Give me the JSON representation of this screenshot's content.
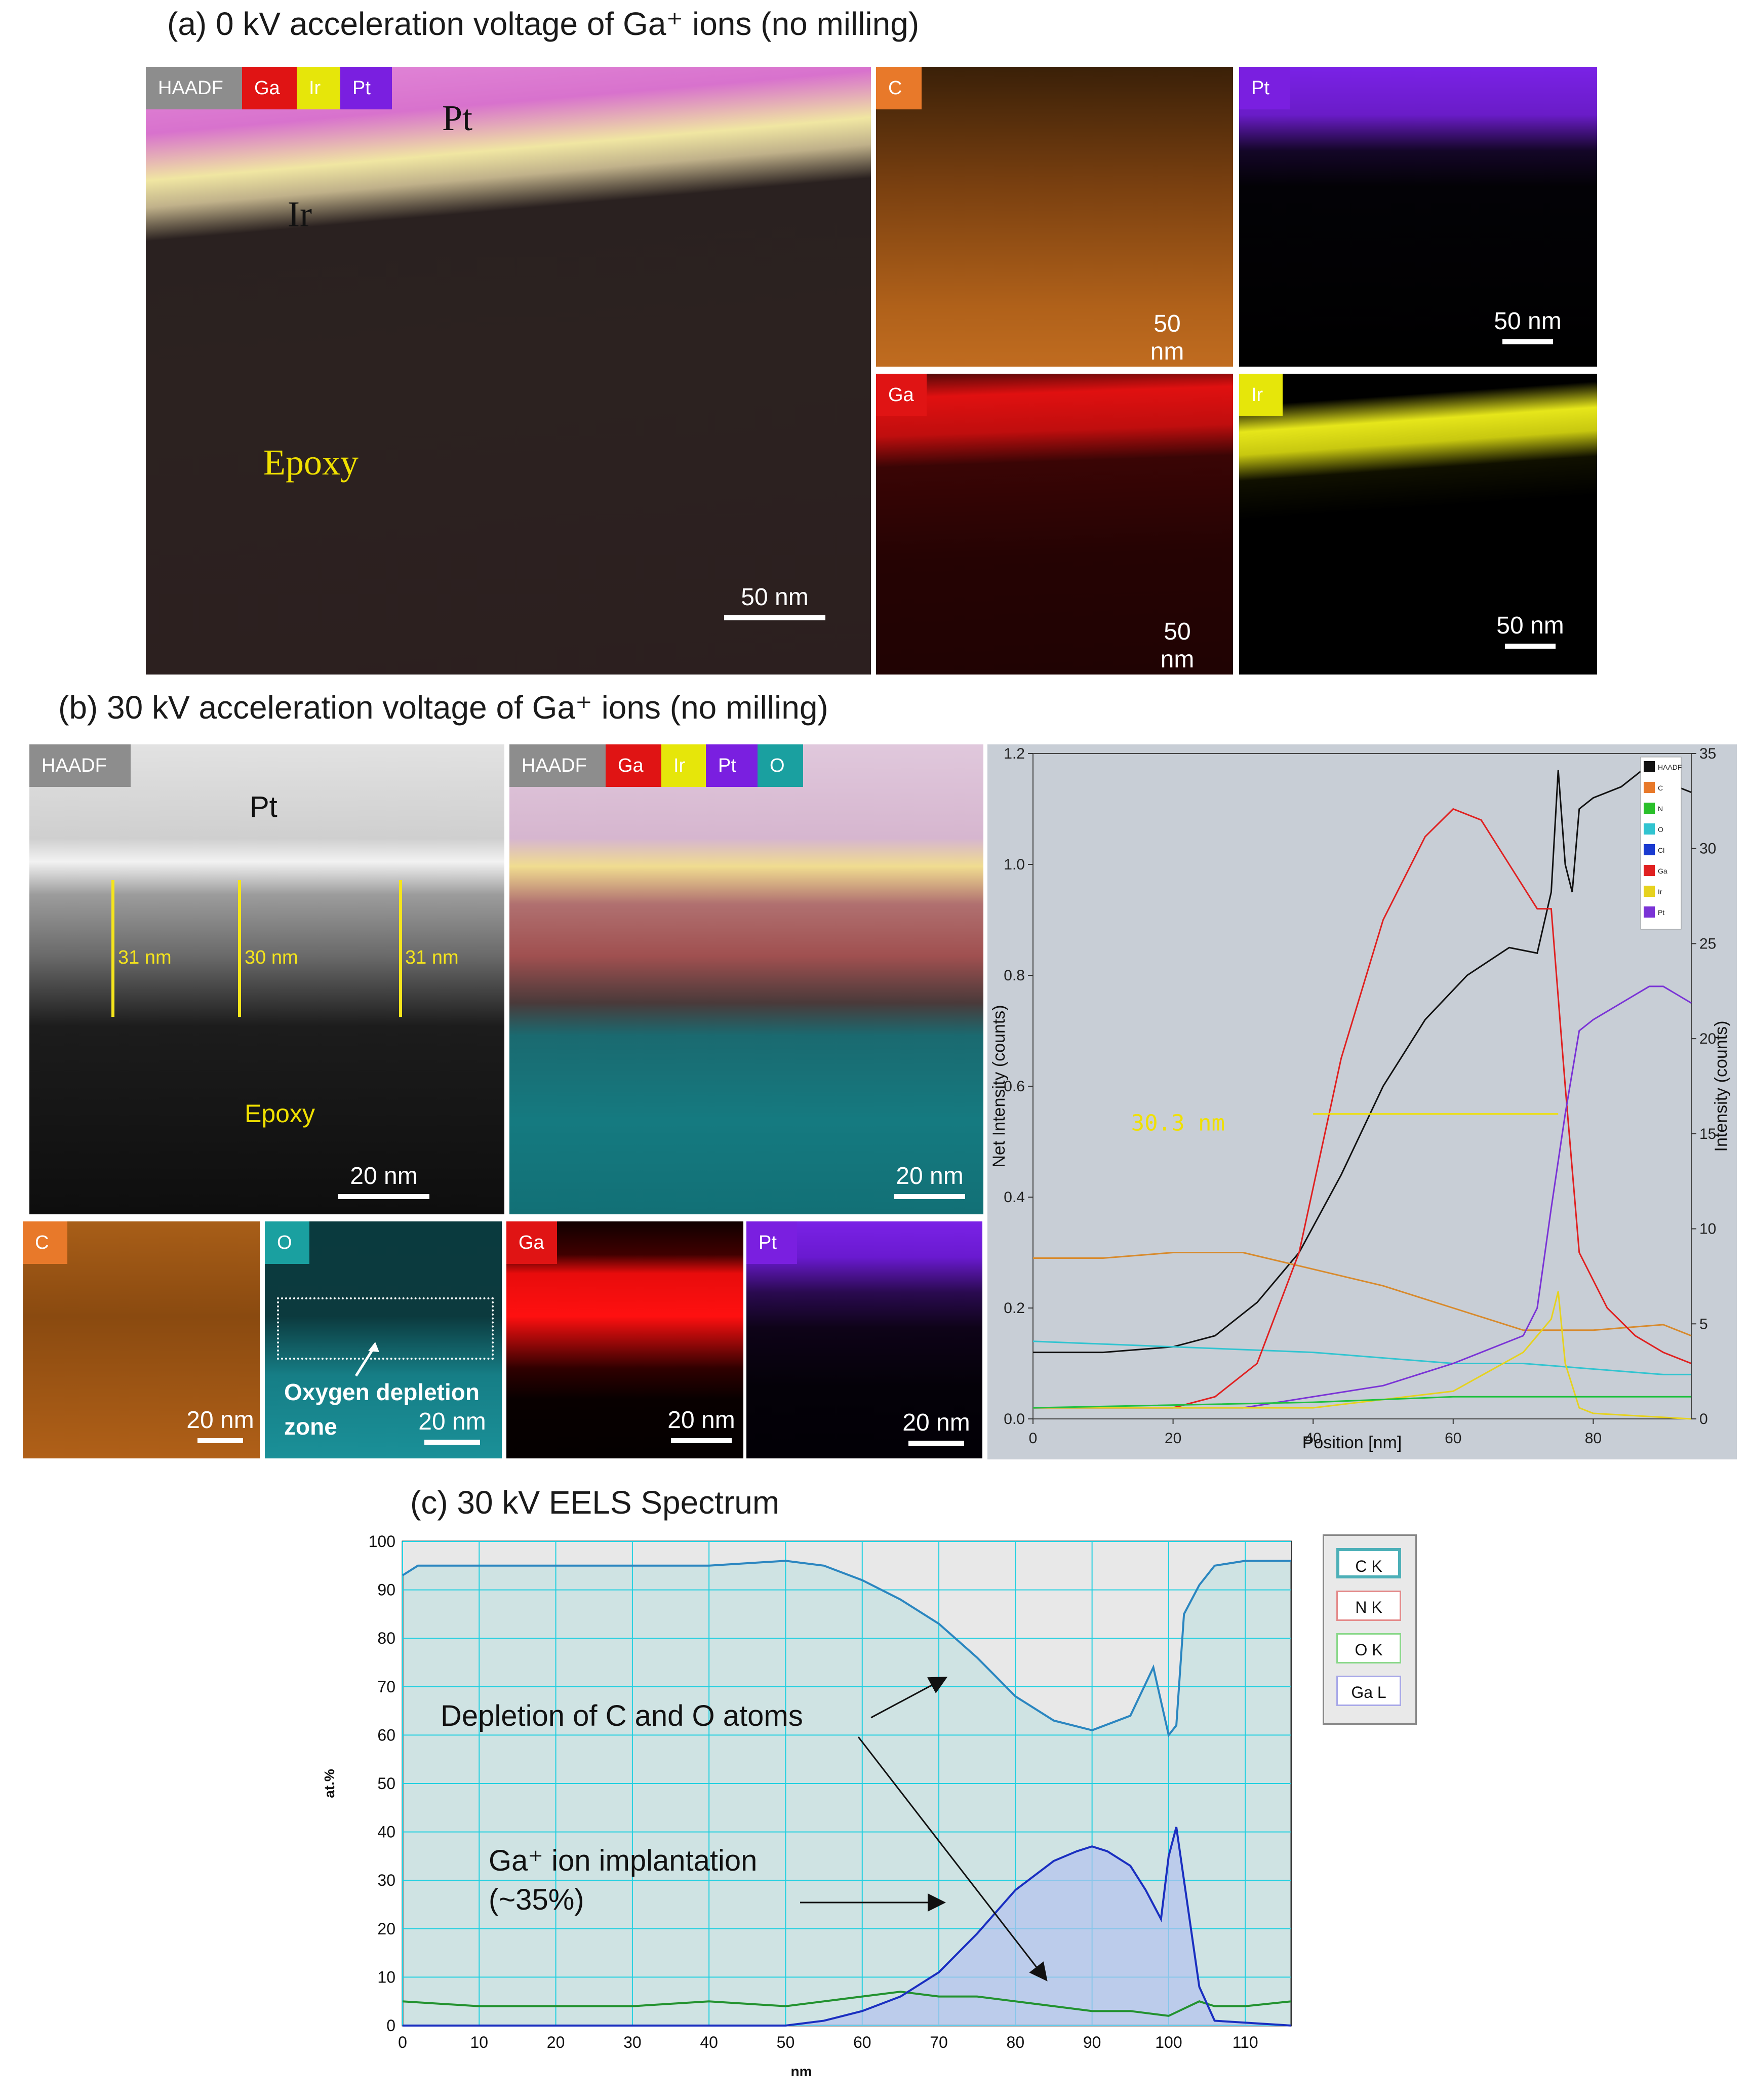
{
  "panel_a": {
    "title": "(a) 0 kV acceleration voltage of Ga⁺ ions (no milling)",
    "composite_tags": [
      "HAADF",
      "Ga",
      "Ir",
      "Pt"
    ],
    "labels": {
      "pt": "Pt",
      "ir": "Ir",
      "epoxy": "Epoxy"
    },
    "maps": [
      {
        "tag": "C",
        "tag_color": "#e8792a"
      },
      {
        "tag": "Pt",
        "tag_color": "#7a1fe0"
      },
      {
        "tag": "Ga",
        "tag_color": "#e01414"
      },
      {
        "tag": "Ir",
        "tag_color": "#e6e60a"
      }
    ],
    "scalebar": "50 nm"
  },
  "panel_b": {
    "title": "(b) 30 kV acceleration voltage of Ga⁺ ions (no milling)",
    "haadf_tag": "HAADF",
    "composite_tags": [
      "HAADF",
      "Ga",
      "Ir",
      "Pt",
      "O"
    ],
    "labels": {
      "pt": "Pt",
      "epoxy": "Epoxy"
    },
    "thickness": [
      "31 nm",
      "30 nm",
      "31 nm"
    ],
    "maps": [
      {
        "tag": "C",
        "tag_color": "#e8792a"
      },
      {
        "tag": "O",
        "tag_color": "#1aa0a0"
      },
      {
        "tag": "Ga",
        "tag_color": "#e01414"
      },
      {
        "tag": "Pt",
        "tag_color": "#7a1fe0"
      }
    ],
    "oxygen_note_1": "Oxygen depletion",
    "oxygen_note_2": "zone",
    "scalebar": "20 nm"
  },
  "chart_data": [
    {
      "type": "line",
      "xlabel": "Position [nm]",
      "ylabel_left": "Net Intensity (counts)",
      "ylabel_right": "Intensity (counts)",
      "x_ticks": [
        0,
        20,
        40,
        60,
        80
      ],
      "y_left_ticks": [
        "0.0",
        "0.2",
        "0.4",
        "0.6",
        "0.8",
        "1.0",
        "1.2"
      ],
      "y_right_ticks": [
        "0",
        "5",
        "10",
        "15",
        "20",
        "25",
        "30",
        "35"
      ],
      "xlim": [
        0,
        94
      ],
      "ylim_left": [
        0,
        1.2
      ],
      "ylim_right": [
        0,
        35
      ],
      "annotation": "30.3 nm",
      "legend": [
        "HAADF",
        "C",
        "N",
        "O",
        "Cl",
        "Ga",
        "Ir",
        "Pt"
      ],
      "series": [
        {
          "name": "HAADF",
          "color": "#111111",
          "axis": "left",
          "x": [
            0,
            10,
            20,
            26,
            32,
            38,
            44,
            50,
            56,
            62,
            68,
            72,
            74,
            75,
            76,
            77,
            78,
            80,
            84,
            88,
            90,
            94
          ],
          "y": [
            0.12,
            0.12,
            0.13,
            0.15,
            0.21,
            0.3,
            0.44,
            0.6,
            0.72,
            0.8,
            0.85,
            0.84,
            0.95,
            1.17,
            1.0,
            0.95,
            1.1,
            1.12,
            1.14,
            1.18,
            1.15,
            1.13
          ]
        },
        {
          "name": "C",
          "color": "#d88a2c",
          "axis": "left",
          "x": [
            0,
            10,
            20,
            30,
            40,
            50,
            60,
            70,
            80,
            90,
            94
          ],
          "y": [
            0.29,
            0.29,
            0.3,
            0.3,
            0.27,
            0.24,
            0.2,
            0.16,
            0.16,
            0.17,
            0.15
          ]
        },
        {
          "name": "O",
          "color": "#31c4d0",
          "axis": "left",
          "x": [
            0,
            20,
            40,
            60,
            70,
            80,
            90,
            94
          ],
          "y": [
            0.14,
            0.13,
            0.12,
            0.1,
            0.1,
            0.09,
            0.08,
            0.08
          ]
        },
        {
          "name": "Ga",
          "color": "#e02020",
          "axis": "left",
          "x": [
            0,
            20,
            26,
            32,
            38,
            44,
            50,
            56,
            60,
            64,
            68,
            72,
            74,
            76,
            78,
            82,
            86,
            90,
            94
          ],
          "y": [
            0.02,
            0.02,
            0.04,
            0.1,
            0.3,
            0.65,
            0.9,
            1.05,
            1.1,
            1.08,
            1.0,
            0.92,
            0.92,
            0.6,
            0.3,
            0.2,
            0.15,
            0.12,
            0.1
          ]
        },
        {
          "name": "Pt",
          "color": "#7a33d6",
          "axis": "left",
          "x": [
            0,
            30,
            50,
            60,
            66,
            70,
            72,
            74,
            76,
            78,
            80,
            84,
            88,
            90,
            94
          ],
          "y": [
            0.02,
            0.02,
            0.06,
            0.1,
            0.13,
            0.15,
            0.2,
            0.38,
            0.55,
            0.7,
            0.72,
            0.75,
            0.78,
            0.78,
            0.75
          ]
        },
        {
          "name": "Ir",
          "color": "#e6d21e",
          "axis": "left",
          "x": [
            0,
            40,
            60,
            70,
            74,
            75,
            76,
            78,
            80,
            94
          ],
          "y": [
            0.02,
            0.02,
            0.05,
            0.12,
            0.18,
            0.23,
            0.1,
            0.02,
            0.01,
            0.0
          ]
        },
        {
          "name": "N",
          "color": "#20c040",
          "axis": "left",
          "x": [
            0,
            40,
            60,
            80,
            94
          ],
          "y": [
            0.02,
            0.03,
            0.04,
            0.04,
            0.04
          ]
        }
      ]
    },
    {
      "type": "line",
      "title": "(c) 30 kV EELS Spectrum",
      "xlabel": "nm",
      "ylabel": "at.%",
      "xlim": [
        0,
        116
      ],
      "ylim": [
        0,
        100
      ],
      "x_ticks": [
        0,
        10,
        20,
        30,
        40,
        50,
        60,
        70,
        80,
        90,
        100,
        110
      ],
      "y_ticks": [
        0,
        10,
        20,
        30,
        40,
        50,
        60,
        70,
        80,
        90,
        100
      ],
      "legend": [
        "C K",
        "N K",
        "O K",
        "Ga L"
      ],
      "annotations": [
        "Depletion of C and O atoms",
        "Ga⁺ ion implantation",
        "(~35%)"
      ],
      "series": [
        {
          "name": "C K",
          "color": "#2b86c0",
          "x": [
            0,
            2,
            10,
            20,
            30,
            40,
            50,
            55,
            60,
            65,
            70,
            75,
            80,
            85,
            90,
            95,
            98,
            100,
            101,
            102,
            104,
            106,
            110,
            116
          ],
          "y": [
            93,
            95,
            95,
            95,
            95,
            95,
            96,
            95,
            92,
            88,
            83,
            76,
            68,
            63,
            61,
            64,
            74,
            60,
            62,
            85,
            91,
            95,
            96,
            96
          ]
        },
        {
          "name": "O K",
          "color": "#22922f",
          "x": [
            0,
            10,
            20,
            30,
            40,
            50,
            55,
            60,
            65,
            70,
            75,
            80,
            85,
            90,
            95,
            100,
            104,
            106,
            110,
            116
          ],
          "y": [
            5,
            4,
            4,
            4,
            5,
            4,
            5,
            6,
            7,
            6,
            6,
            5,
            4,
            3,
            3,
            2,
            5,
            4,
            4,
            5
          ]
        },
        {
          "name": "Ga L",
          "color": "#1a2fc0",
          "x": [
            0,
            10,
            20,
            30,
            40,
            50,
            55,
            60,
            65,
            70,
            75,
            80,
            85,
            88,
            90,
            92,
            95,
            97,
            99,
            100,
            101,
            102,
            104,
            106,
            116
          ],
          "y": [
            0,
            0,
            0,
            0,
            0,
            0,
            1,
            3,
            6,
            11,
            19,
            28,
            34,
            36,
            37,
            36,
            33,
            28,
            22,
            35,
            41,
            30,
            8,
            1,
            0
          ]
        }
      ]
    }
  ]
}
